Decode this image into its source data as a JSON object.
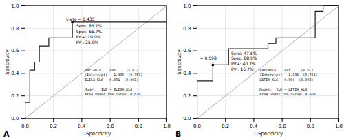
{
  "chart_data": [
    {
      "type": "step",
      "title": "A",
      "x_label": "1-Specificity",
      "y_label": "Sensitivity",
      "x": [
        0.0,
        0.0,
        0.0,
        0.033,
        0.033,
        0.033,
        0.033,
        0.067,
        0.067,
        0.1,
        0.1,
        0.1,
        0.133,
        0.167,
        0.167,
        0.2,
        0.233,
        0.267,
        0.3,
        0.333,
        0.333,
        0.333,
        0.4,
        0.467,
        0.533,
        0.6,
        0.667,
        0.733,
        0.8,
        0.867,
        0.933,
        1.0,
        1.0
      ],
      "values": [
        0.0,
        0.071,
        0.143,
        0.143,
        0.286,
        0.357,
        0.429,
        0.429,
        0.5,
        0.5,
        0.571,
        0.643,
        0.643,
        0.643,
        0.714,
        0.714,
        0.714,
        0.714,
        0.714,
        0.714,
        0.786,
        0.857,
        0.857,
        0.857,
        0.857,
        0.857,
        0.857,
        0.857,
        0.857,
        0.857,
        0.857,
        0.857,
        1.0
      ],
      "optimal_point": [
        0.333,
        0.857
      ],
      "color": "#1a1a1a",
      "annotations": [
        "lr.eta = 0.435",
        "Sens: 85.7%\nSpec: 66.7%\nPV+: 20.0%\nPV-: 25.0%",
        "Variable    est.    (s.e.)\n(Intercept)  -1.405  (0.753)\nELISA_KL6   0.001  (0.001)\n\nModel:  ILD ~ ELISA_KL6\nArea under the curve: 0.810"
      ],
      "xlim": [
        0,
        1
      ],
      "ylim": [
        0,
        1
      ],
      "xticks": [
        {
          "value": 0,
          "label": "0.0"
        },
        0.2,
        0.4,
        0.6,
        0.8,
        {
          "value": 1,
          "label": "1.0"
        }
      ],
      "yticks": [
        {
          "value": 0,
          "label": "0.0"
        },
        0.2,
        0.4,
        0.6,
        0.8,
        {
          "value": 1,
          "label": "1.0"
        }
      ],
      "grid": true
    },
    {
      "type": "step",
      "title": "B",
      "x_label": "1-Specificity",
      "y_label": "Sensitivity",
      "x": [
        0.0,
        0.0,
        0.0,
        0.0,
        0.0,
        0.0,
        0.0,
        0.0,
        0.111,
        0.111,
        0.111,
        0.111,
        0.167,
        0.222,
        0.222,
        0.222,
        0.222,
        0.278,
        0.333,
        0.389,
        0.444,
        0.5,
        0.5,
        0.556,
        0.556,
        0.611,
        0.667,
        0.722,
        0.778,
        0.833,
        0.833,
        0.833,
        0.833,
        0.833,
        0.833,
        0.889,
        0.889,
        1.0
      ],
      "values": [
        0.0,
        0.048,
        0.095,
        0.143,
        0.19,
        0.238,
        0.286,
        0.333,
        0.333,
        0.381,
        0.429,
        0.476,
        0.476,
        0.476,
        0.524,
        0.571,
        0.619,
        0.619,
        0.619,
        0.619,
        0.619,
        0.619,
        0.667,
        0.667,
        0.714,
        0.714,
        0.714,
        0.714,
        0.714,
        0.714,
        0.762,
        0.81,
        0.857,
        0.905,
        0.952,
        0.952,
        1.0,
        1.0
      ],
      "optimal_point": [
        0.111,
        0.476
      ],
      "color": "#1a1a1a",
      "annotations": [
        "= 0.598",
        "Sens: 47.6%\nSpec: 88.9%\nPV+: 40.7%\nPV-: 16.7%",
        "Variable    est.    (s.e.)\n(Intercept)  -1.336  (0.764)\nLETIA_KL6   0.004  (0.002)\n\nModel:  ILD ~ LETIA_KL6\nArea under the curve: 0.669"
      ],
      "xlim": [
        0,
        1
      ],
      "ylim": [
        0,
        1
      ],
      "xticks": [
        {
          "value": 0,
          "label": "0.0"
        },
        0.2,
        0.4,
        0.6,
        0.8,
        {
          "value": 1,
          "label": "1.0"
        }
      ],
      "yticks": [
        {
          "value": 0,
          "label": "0.0"
        },
        0.2,
        0.4,
        0.6,
        0.8,
        {
          "value": 1,
          "label": "1.0"
        }
      ],
      "grid": true
    }
  ]
}
